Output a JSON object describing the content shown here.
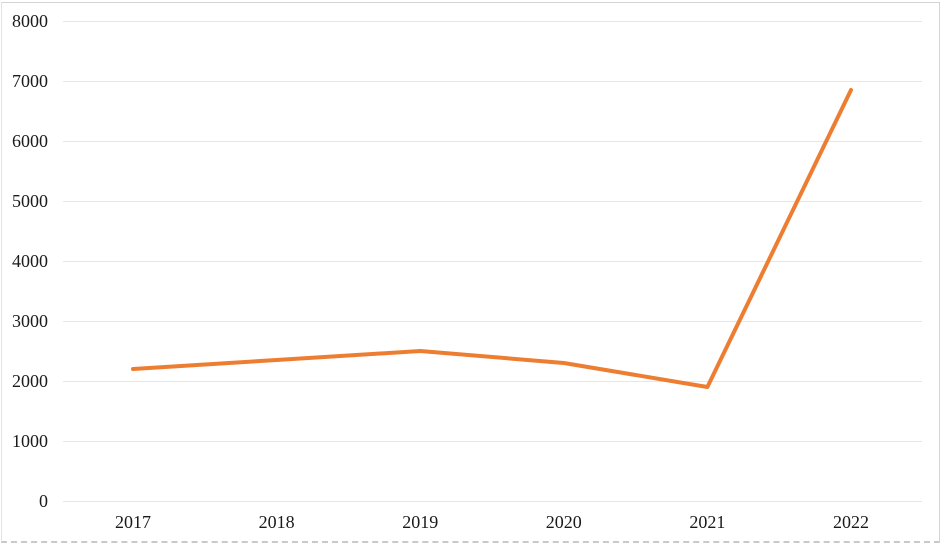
{
  "chart_data": {
    "type": "line",
    "title": "",
    "xlabel": "",
    "ylabel": "",
    "categories": [
      "2017",
      "2018",
      "2019",
      "2020",
      "2021",
      "2022"
    ],
    "series": [
      {
        "name": "series-1",
        "values": [
          2200,
          2350,
          2500,
          2300,
          1900,
          6850
        ]
      }
    ],
    "ylim": [
      0,
      8000
    ],
    "y_ticks": [
      0,
      1000,
      2000,
      3000,
      4000,
      5000,
      6000,
      7000,
      8000
    ],
    "grid": "horizontal",
    "legend": "none",
    "line_color": "#ED7D31",
    "gridline_color": "#E6E6E6",
    "label_color": "#1a1a1a"
  }
}
